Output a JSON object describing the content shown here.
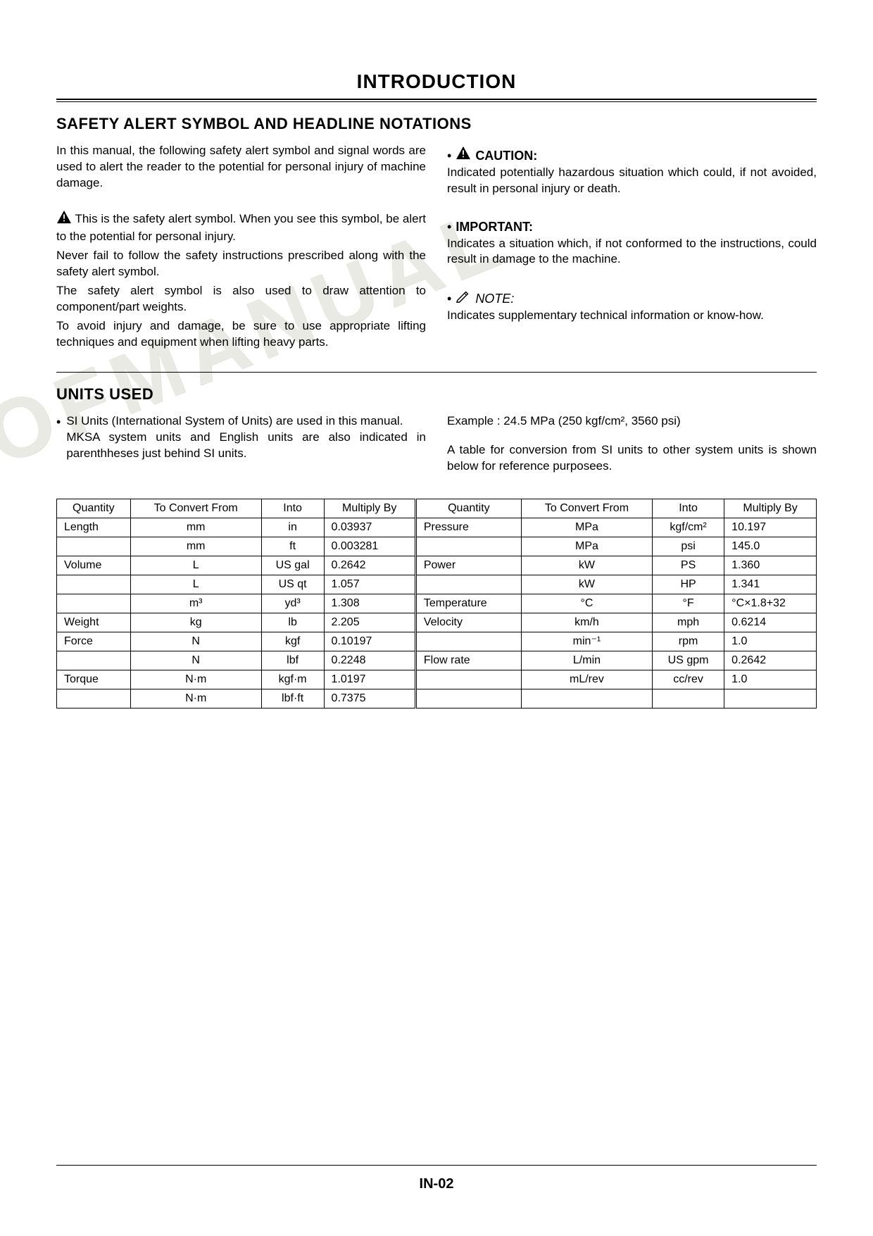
{
  "page": {
    "title": "INTRODUCTION",
    "footer_page": "IN-02"
  },
  "watermark": "OFMANUAL",
  "safety": {
    "heading": "SAFETY ALERT SYMBOL AND HEADLINE NOTATIONS",
    "intro": "In this manual, the following safety alert symbol and signal words are used to alert the reader to the potential for personal injury of machine damage.",
    "para1": "This is the safety alert symbol. When you see this symbol, be alert to the potential for personal injury.",
    "para2": "Never fail to follow the safety instructions prescribed along with the safety alert symbol.",
    "para3": "The safety alert symbol is also used to draw attention to component/part weights.",
    "para4": "To avoid injury and damage, be sure to use appropriate lifting techniques and equipment when lifting heavy parts.",
    "caution_label": "CAUTION:",
    "caution_body": "Indicated potentially hazardous situation which could, if not avoided, result in personal injury or death.",
    "important_label": "IMPORTANT:",
    "important_body": "Indicates a situation which, if not conformed to the instructions, could result in damage to the machine.",
    "note_label": "NOTE:",
    "note_body": "Indicates supplementary technical information or know-how."
  },
  "units": {
    "heading": "UNITS USED",
    "bullet1a": "SI Units (International System of Units) are used in this manual.",
    "bullet1b": "MKSA system units and English units are also indicated in parenthheses just behind SI units.",
    "example": "Example : 24.5 MPa (250 kgf/cm², 3560 psi)",
    "desc": "A table for conversion from SI units to other system units is shown below for reference purposees."
  },
  "table": {
    "headers": [
      "Quantity",
      "To Convert From",
      "Into",
      "Multiply By",
      "Quantity",
      "To Convert From",
      "Into",
      "Multiply By"
    ],
    "rows": [
      [
        "Length",
        "mm",
        "in",
        "0.03937",
        "Pressure",
        "MPa",
        "kgf/cm²",
        "10.197"
      ],
      [
        "",
        "mm",
        "ft",
        "0.003281",
        "",
        "MPa",
        "psi",
        "145.0"
      ],
      [
        "Volume",
        "L",
        "US gal",
        "0.2642",
        "Power",
        "kW",
        "PS",
        "1.360"
      ],
      [
        "",
        "L",
        "US qt",
        "1.057",
        "",
        "kW",
        "HP",
        "1.341"
      ],
      [
        "",
        "m³",
        "yd³",
        "1.308",
        "Temperature",
        "°C",
        "°F",
        "°C×1.8+32"
      ],
      [
        "Weight",
        "kg",
        "lb",
        "2.205",
        "Velocity",
        "km/h",
        "mph",
        "0.6214"
      ],
      [
        "Force",
        "N",
        "kgf",
        "0.10197",
        "",
        "min⁻¹",
        "rpm",
        "1.0"
      ],
      [
        "",
        "N",
        "lbf",
        "0.2248",
        "Flow rate",
        "L/min",
        "US gpm",
        "0.2642"
      ],
      [
        "Torque",
        "N·m",
        "kgf·m",
        "1.0197",
        "",
        "mL/rev",
        "cc/rev",
        "1.0"
      ],
      [
        "",
        "N·m",
        "lbf·ft",
        "0.7375",
        "",
        "",
        "",
        ""
      ]
    ],
    "col_align": [
      "l",
      "c",
      "c",
      "l",
      "l",
      "c",
      "c",
      "l"
    ],
    "border_color": "#000000",
    "font_size": 16
  },
  "colors": {
    "text": "#000000",
    "background": "#ffffff",
    "watermark": "#d9d9d0"
  }
}
